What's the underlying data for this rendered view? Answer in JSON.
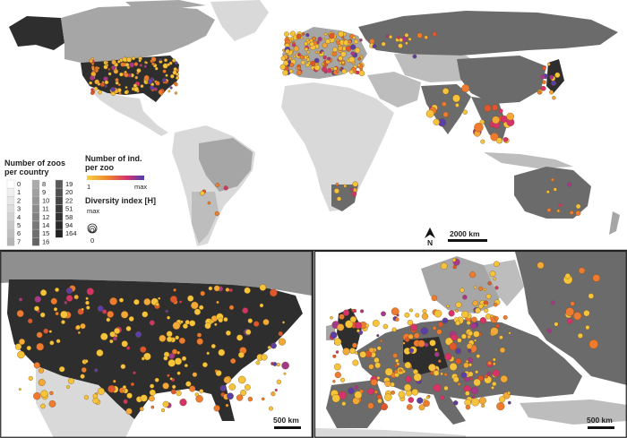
{
  "legend": {
    "zoos_title_line1": "Number of zoos",
    "zoos_title_line2": "per country",
    "zoos_col1": [
      "0",
      "1",
      "2",
      "3",
      "4",
      "5",
      "6",
      "7"
    ],
    "zoos_col2": [
      "8",
      "9",
      "10",
      "11",
      "12",
      "14",
      "15",
      "16"
    ],
    "zoos_col3": [
      "19",
      "20",
      "22",
      "51",
      "58",
      "94",
      "164"
    ],
    "ind_title_line1": "Number of ind.",
    "ind_title_line2": "per zoo",
    "ind_min": "1",
    "ind_max": "max",
    "diversity_title": "Diversity index [H]",
    "diversity_max": "max",
    "diversity_min": "0"
  },
  "north_label": "N",
  "scales": {
    "world": "2000 km",
    "usa": "500 km",
    "europe": "500 km"
  },
  "colors": {
    "ocean": "#ffffff",
    "land_light": "#d9d9d9",
    "land_mid": "#a6a6a6",
    "land_dark": "#6b6b6b",
    "land_darkest": "#2e2e2e",
    "dot_low": "#f5c43b",
    "dot_mid": "#ee7b2f",
    "dot_high": "#d6336c",
    "dot_max": "#5b3fa8"
  }
}
